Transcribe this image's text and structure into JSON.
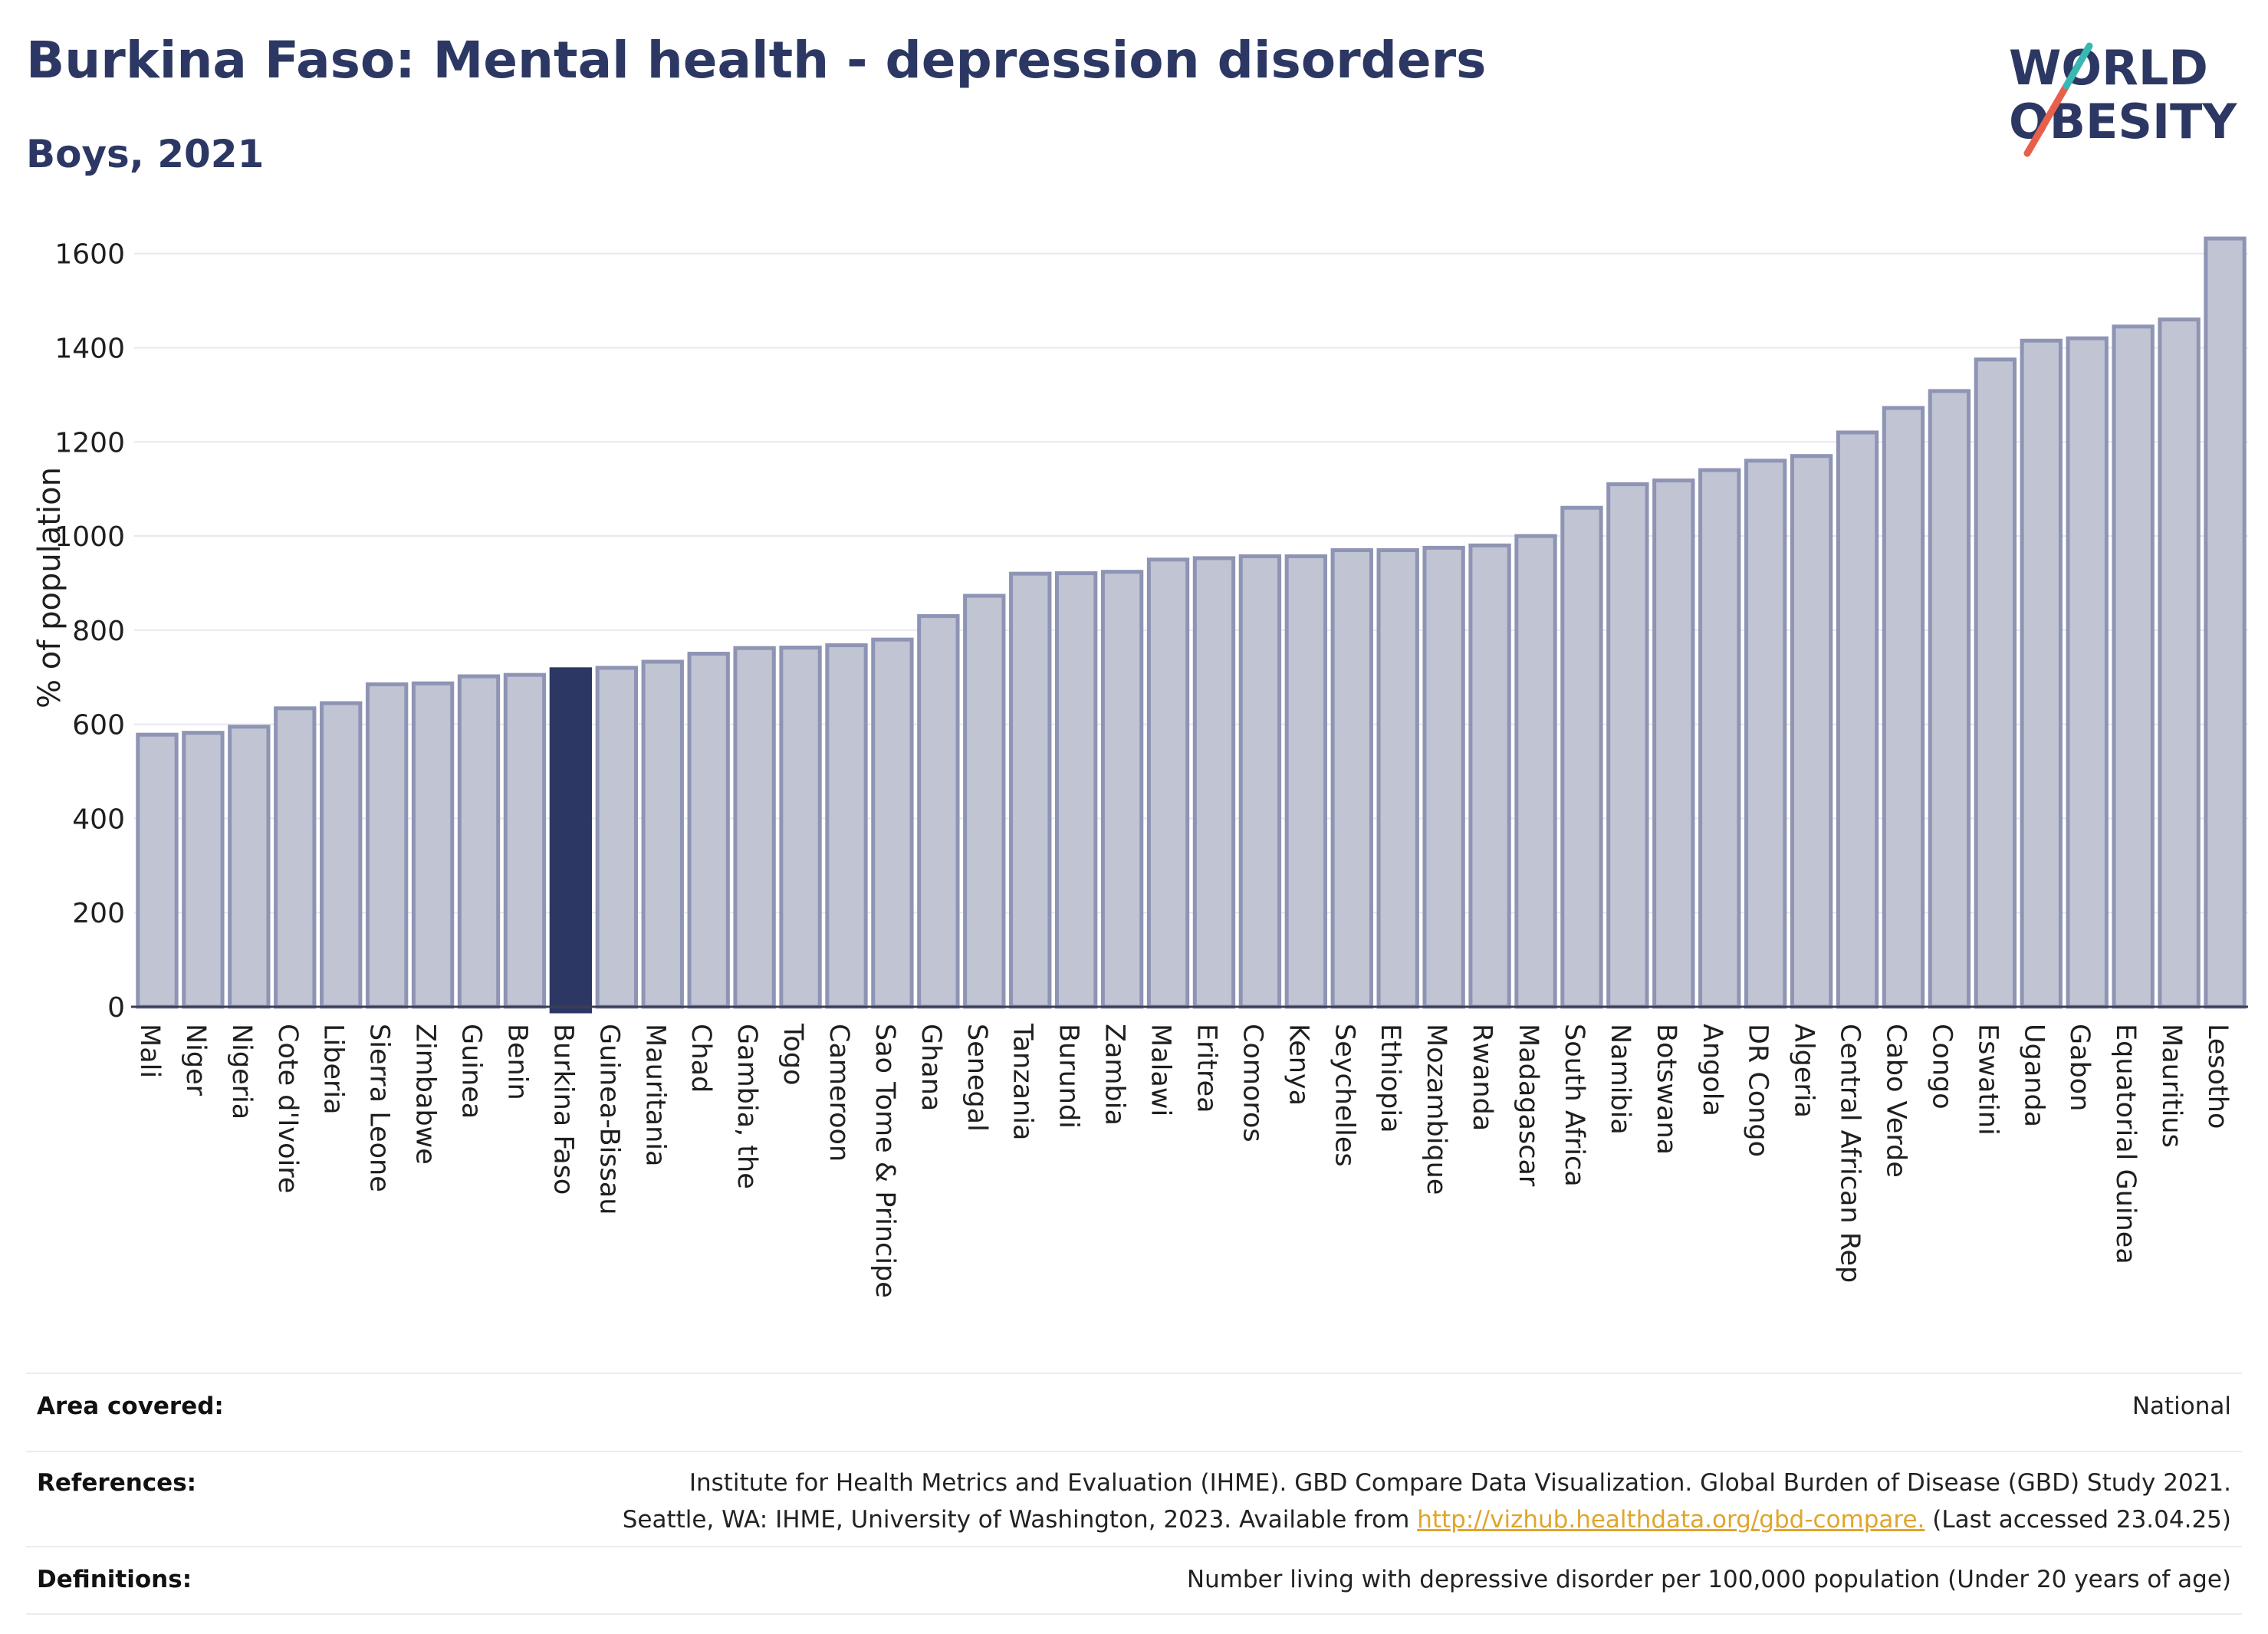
{
  "header": {
    "title": "Burkina Faso: Mental health - depression disorders",
    "subtitle": "Boys, 2021"
  },
  "logo": {
    "line1": "WORLD",
    "line2": "OBESITY"
  },
  "colors": {
    "bar": "#c0c4d3",
    "bar_border": "#8e94b3",
    "highlight": "#2c3863",
    "grid": "#e6e8ef",
    "accent_red": "#e8604c",
    "accent_teal": "#38b8b0"
  },
  "chart_data": {
    "type": "bar",
    "ylabel": "% of population",
    "ylim": [
      0,
      1650
    ],
    "yticks": [
      0,
      200,
      400,
      600,
      800,
      1000,
      1200,
      1400,
      1600
    ],
    "grid": true,
    "highlight": "Burkina Faso",
    "categories": [
      "Mali",
      "Niger",
      "Nigeria",
      "Cote d'Ivoire",
      "Liberia",
      "Sierra Leone",
      "Zimbabwe",
      "Guinea",
      "Benin",
      "Burkina Faso",
      "Guinea-Bissau",
      "Mauritania",
      "Chad",
      "Gambia, the",
      "Togo",
      "Cameroon",
      "Sao Tome & Principe",
      "Ghana",
      "Senegal",
      "Tanzania",
      "Burundi",
      "Zambia",
      "Malawi",
      "Eritrea",
      "Comoros",
      "Kenya",
      "Seychelles",
      "Ethiopia",
      "Mozambique",
      "Rwanda",
      "Madagascar",
      "South Africa",
      "Namibia",
      "Botswana",
      "Angola",
      "DR Congo",
      "Algeria",
      "Central African Rep",
      "Cabo Verde",
      "Congo",
      "Eswatini",
      "Uganda",
      "Gabon",
      "Equatorial Guinea",
      "Mauritius",
      "Lesotho"
    ],
    "values": [
      578,
      582,
      595,
      634,
      645,
      685,
      687,
      702,
      705,
      717,
      720,
      733,
      750,
      762,
      763,
      768,
      780,
      830,
      873,
      920,
      921,
      924,
      950,
      953,
      957,
      957,
      970,
      970,
      975,
      980,
      1000,
      1060,
      1110,
      1118,
      1140,
      1160,
      1170,
      1220,
      1272,
      1308,
      1375,
      1415,
      1420,
      1445,
      1460,
      1632
    ]
  },
  "info": {
    "area_label": "Area covered:",
    "area_value": "National",
    "references_label": "References:",
    "references_line1": "Institute for Health Metrics and Evaluation (IHME). GBD Compare Data Visualization. Global Burden of Disease (GBD) Study 2021.",
    "references_line2_pre": "Seattle, WA: IHME, University of Washington, 2023. Available from ",
    "references_link": "http://vizhub.healthdata.org/gbd-compare.",
    "references_line2_post": " (Last accessed 23.04.25)",
    "definitions_label": "Definitions:",
    "definitions_value": "Number living with depressive disorder per 100,000 population (Under 20 years of age)"
  }
}
